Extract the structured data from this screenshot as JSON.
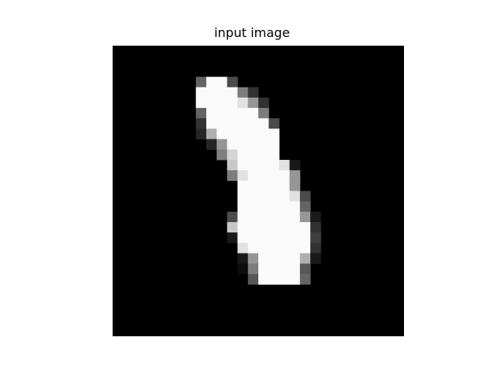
{
  "chart_data": {
    "type": "heatmap",
    "title": "input image",
    "xlabel": "",
    "ylabel": "",
    "axes": "off",
    "colormap": "gray",
    "shape": [
      28,
      28
    ],
    "vmin": 0,
    "vmax": 255,
    "pixels": {
      "3": [
        [
          8,
          0.4
        ],
        [
          9,
          1
        ],
        [
          10,
          1
        ],
        [
          11,
          0.3
        ]
      ],
      "4": [
        [
          8,
          1
        ],
        [
          9,
          1
        ],
        [
          10,
          1
        ],
        [
          11,
          1
        ],
        [
          12,
          0.5
        ],
        [
          13,
          0.2
        ]
      ],
      "5": [
        [
          8,
          1
        ],
        [
          9,
          1
        ],
        [
          10,
          1
        ],
        [
          11,
          1
        ],
        [
          12,
          0.9
        ],
        [
          13,
          0.6
        ],
        [
          14,
          0.2
        ]
      ],
      "6": [
        [
          8,
          0.4
        ],
        [
          9,
          1
        ],
        [
          10,
          1
        ],
        [
          11,
          1
        ],
        [
          12,
          1
        ],
        [
          13,
          1
        ],
        [
          14,
          0.5
        ]
      ],
      "7": [
        [
          8,
          0.2
        ],
        [
          9,
          1
        ],
        [
          10,
          1
        ],
        [
          11,
          1
        ],
        [
          12,
          1
        ],
        [
          13,
          1
        ],
        [
          14,
          1
        ],
        [
          15,
          0.3
        ]
      ],
      "8": [
        [
          8,
          0.15
        ],
        [
          9,
          0.7
        ],
        [
          10,
          1
        ],
        [
          11,
          1
        ],
        [
          12,
          1
        ],
        [
          13,
          1
        ],
        [
          14,
          1
        ],
        [
          15,
          1
        ]
      ],
      "9": [
        [
          9,
          0.15
        ],
        [
          10,
          0.6
        ],
        [
          11,
          1
        ],
        [
          12,
          1
        ],
        [
          13,
          1
        ],
        [
          14,
          1
        ],
        [
          15,
          1
        ]
      ],
      "10": [
        [
          10,
          0.5
        ],
        [
          11,
          0.85
        ],
        [
          12,
          1
        ],
        [
          13,
          1
        ],
        [
          14,
          1
        ],
        [
          15,
          1
        ]
      ],
      "11": [
        [
          11,
          0.8
        ],
        [
          12,
          1
        ],
        [
          13,
          1
        ],
        [
          14,
          1
        ],
        [
          15,
          1
        ],
        [
          16,
          0.9
        ],
        [
          17,
          0.1
        ]
      ],
      "12": [
        [
          11,
          0.5
        ],
        [
          12,
          0.9
        ],
        [
          13,
          1
        ],
        [
          14,
          1
        ],
        [
          15,
          1
        ],
        [
          16,
          1
        ],
        [
          17,
          0.6
        ]
      ],
      "13": [
        [
          12,
          1
        ],
        [
          13,
          1
        ],
        [
          14,
          1
        ],
        [
          15,
          1
        ],
        [
          16,
          1
        ],
        [
          17,
          0.6
        ]
      ],
      "14": [
        [
          12,
          1
        ],
        [
          13,
          1
        ],
        [
          14,
          1
        ],
        [
          15,
          1
        ],
        [
          16,
          1
        ],
        [
          17,
          0.9
        ],
        [
          18,
          0.3
        ]
      ],
      "15": [
        [
          12,
          1
        ],
        [
          13,
          1
        ],
        [
          14,
          1
        ],
        [
          15,
          1
        ],
        [
          16,
          1
        ],
        [
          17,
          1
        ],
        [
          18,
          0.4
        ]
      ],
      "16": [
        [
          11,
          0.3
        ],
        [
          12,
          1
        ],
        [
          13,
          1
        ],
        [
          14,
          1
        ],
        [
          15,
          1
        ],
        [
          16,
          1
        ],
        [
          17,
          1
        ],
        [
          18,
          0.6
        ],
        [
          19,
          0.1
        ]
      ],
      "17": [
        [
          11,
          0.8
        ],
        [
          12,
          1
        ],
        [
          13,
          1
        ],
        [
          14,
          1
        ],
        [
          15,
          1
        ],
        [
          16,
          1
        ],
        [
          17,
          1
        ],
        [
          18,
          1
        ],
        [
          19,
          0.2
        ]
      ],
      "18": [
        [
          11,
          0.1
        ],
        [
          12,
          1
        ],
        [
          13,
          1
        ],
        [
          14,
          1
        ],
        [
          15,
          1
        ],
        [
          16,
          1
        ],
        [
          17,
          1
        ],
        [
          18,
          1
        ],
        [
          19,
          0.25
        ]
      ],
      "19": [
        [
          12,
          0.9
        ],
        [
          13,
          1
        ],
        [
          14,
          1
        ],
        [
          15,
          1
        ],
        [
          16,
          1
        ],
        [
          17,
          1
        ],
        [
          18,
          1
        ],
        [
          19,
          0.2
        ]
      ],
      "20": [
        [
          12,
          0.1
        ],
        [
          13,
          0.6
        ],
        [
          14,
          1
        ],
        [
          15,
          1
        ],
        [
          16,
          1
        ],
        [
          17,
          1
        ],
        [
          18,
          0.7
        ],
        [
          19,
          0.1
        ]
      ],
      "21": [
        [
          12,
          0.05
        ],
        [
          13,
          0.5
        ],
        [
          14,
          1
        ],
        [
          15,
          1
        ],
        [
          16,
          1
        ],
        [
          17,
          1
        ],
        [
          18,
          0.35
        ]
      ],
      "22": [
        [
          13,
          0.35
        ],
        [
          14,
          1
        ],
        [
          15,
          1
        ],
        [
          16,
          1
        ],
        [
          17,
          1
        ],
        [
          18,
          0.4
        ]
      ]
    }
  }
}
